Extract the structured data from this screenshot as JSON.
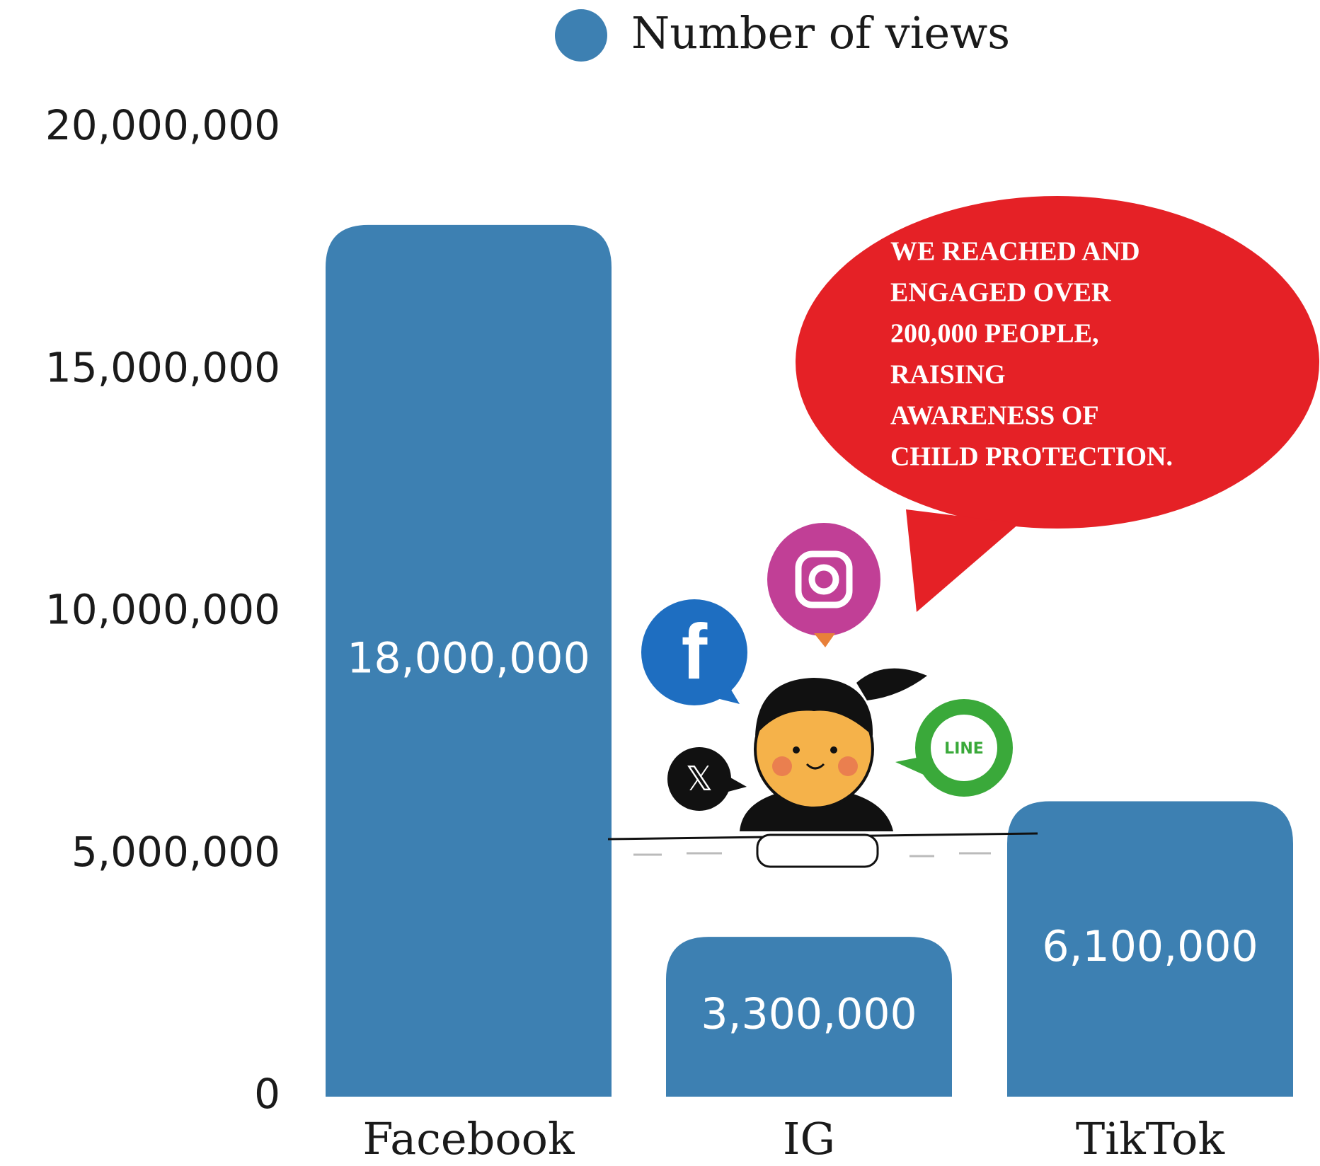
{
  "chart_data": {
    "type": "bar",
    "categories": [
      "Facebook",
      "IG",
      "TikTok"
    ],
    "series": [
      {
        "name": "Number of views",
        "color": "#3d80b2",
        "values": [
          18000000,
          3300000,
          6100000
        ],
        "value_labels": [
          "18,000,000",
          "3,300,000",
          "6,100,000"
        ]
      }
    ],
    "ylim": [
      0,
      20000000
    ],
    "yticks": [
      0,
      {
        "value": 5000000,
        "label": "5,000,000"
      },
      {
        "value": 10000000,
        "label": "10,000,000"
      },
      {
        "value": 15000000,
        "label": "15,000,000"
      },
      {
        "value": 20000000,
        "label": "20,000,000"
      }
    ],
    "legend": "top",
    "annotation": [
      "WE REACHED AND",
      "ENGAGED OVER",
      "200,000 PEOPLE,",
      "RAISING",
      "AWARENESS OF",
      "CHILD PROTECTION."
    ],
    "icon_label": "LINE"
  }
}
